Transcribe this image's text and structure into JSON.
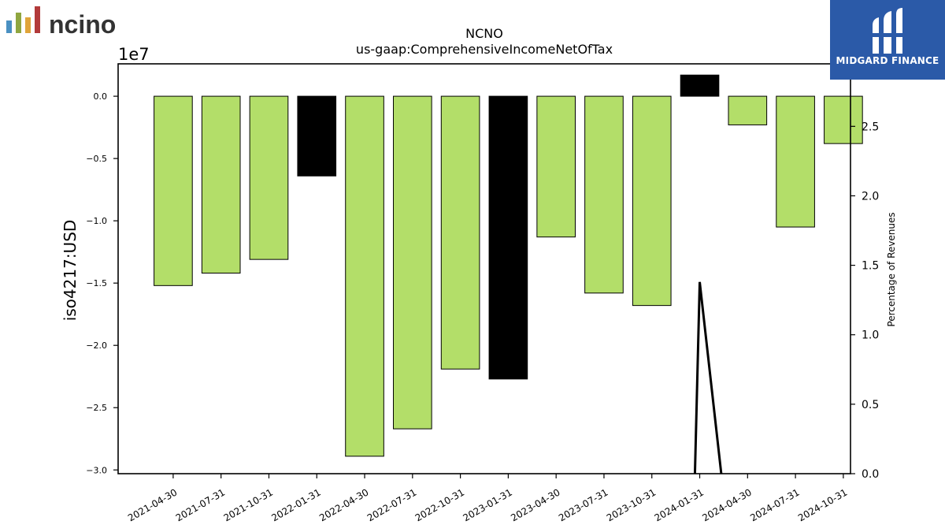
{
  "logos": {
    "left": {
      "text": "ncino"
    },
    "right": {
      "text": "MIDGARD FINANCE"
    }
  },
  "colors": {
    "bar_normal": "#b3de69",
    "bar_highlight": "#000000",
    "line": "#000000",
    "brand_panel": "#2b5aa8"
  },
  "chart_data": {
    "type": "bar",
    "title": "NCNO",
    "subtitle": "us-gaap:ComprehensiveIncomeNetOfTax",
    "ylabel": "iso4217:USD",
    "y_offset_label": "1e7",
    "ylabel_right": "Percentage of Revenues",
    "categories": [
      "2021-04-30",
      "2021-07-31",
      "2021-10-31",
      "2022-01-31",
      "2022-04-30",
      "2022-07-31",
      "2022-10-31",
      "2023-01-31",
      "2023-04-30",
      "2023-07-31",
      "2023-10-31",
      "2024-01-31",
      "2024-04-30",
      "2024-07-31",
      "2024-10-31"
    ],
    "values": [
      -15200000,
      -14200000,
      -13100000,
      -6400000,
      -28900000,
      -26700000,
      -21900000,
      -22700000,
      -11300000,
      -15800000,
      -16800000,
      1700000,
      -2300000,
      -10500000,
      -3800000
    ],
    "highlight": [
      false,
      false,
      false,
      true,
      false,
      false,
      false,
      true,
      false,
      false,
      false,
      true,
      false,
      false,
      false
    ],
    "ylim": [
      -30300000,
      2600000
    ],
    "yticks": [
      0.0,
      -0.5,
      -1.0,
      -1.5,
      -2.0,
      -2.5,
      -3.0
    ],
    "ytick_labels": [
      "0.0",
      "−0.5",
      "−1.0",
      "−1.5",
      "−2.0",
      "−2.5",
      "−3.0"
    ],
    "y2lim": [
      0,
      2.95
    ],
    "y2ticks": [
      0.0,
      0.5,
      1.0,
      1.5,
      2.0,
      2.5
    ],
    "y2tick_labels": [
      "0.0",
      "0.5",
      "1.0",
      "1.5",
      "2.0",
      "2.5"
    ],
    "line_series": {
      "name": "Percentage of Revenues",
      "x_index": [
        10.9,
        11.0,
        11.45
      ],
      "values": [
        0,
        1.38,
        0
      ]
    },
    "grid": false,
    "legend": "none"
  }
}
